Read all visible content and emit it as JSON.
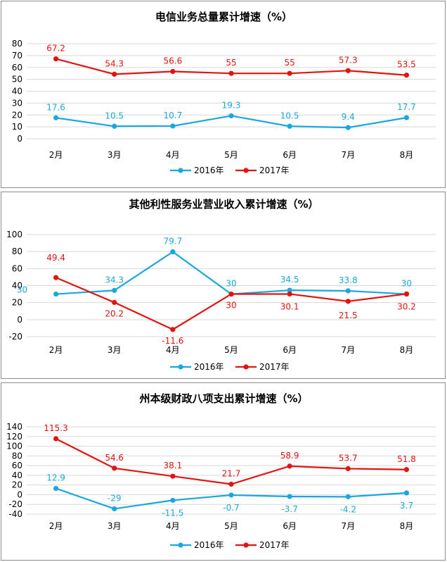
{
  "chart_data": [
    {
      "type": "line",
      "title": "电信业务总量累计增速（%）",
      "categories": [
        "2月",
        "3月",
        "4月",
        "5月",
        "6月",
        "7月",
        "8月"
      ],
      "ylim": [
        0,
        80
      ],
      "yticks": [
        0,
        10,
        20,
        30,
        40,
        50,
        60,
        70,
        80
      ],
      "grid": true,
      "legend": "bottom",
      "series": [
        {
          "name": "2016年",
          "color": "#1aa7e0",
          "values": [
            17.6,
            10.5,
            10.7,
            19.3,
            10.5,
            9.4,
            17.7
          ],
          "labels": [
            "17.6",
            "10.5",
            "10.7",
            "19.3",
            "10.5",
            "9.4",
            "17.7"
          ]
        },
        {
          "name": "2017年",
          "color": "#e3140d",
          "values": [
            67.2,
            54.3,
            56.6,
            55,
            55,
            57.3,
            53.5
          ],
          "labels": [
            "67.2",
            "54.3",
            "56.6",
            "55",
            "55",
            "57.3",
            "53.5"
          ]
        }
      ]
    },
    {
      "type": "line",
      "title": "其他利性服务业营业收入累计增速（%）",
      "categories": [
        "2月",
        "3月",
        "4月",
        "5月",
        "6月",
        "7月",
        "8月"
      ],
      "ylim": [
        -20,
        100
      ],
      "yticks": [
        -20,
        0,
        20,
        40,
        60,
        80,
        100
      ],
      "grid": true,
      "legend": "bottom",
      "series": [
        {
          "name": "2016年",
          "color": "#1aa7e0",
          "values": [
            30,
            34.3,
            79.7,
            30,
            34.5,
            33.8,
            30
          ],
          "labels": [
            "30",
            "34.3",
            "79.7",
            "30",
            "34.5",
            "33.8",
            "30"
          ]
        },
        {
          "name": "2017年",
          "color": "#e3140d",
          "values": [
            49.4,
            20.2,
            -11.6,
            30,
            30.1,
            21.5,
            30.2
          ],
          "labels": [
            "49.4",
            "20.2",
            "-11.6",
            "30",
            "30.1",
            "21.5",
            "30.2"
          ]
        }
      ]
    },
    {
      "type": "line",
      "title": "州本级财政八项支出累计增速（%）",
      "categories": [
        "2月",
        "3月",
        "4月",
        "5月",
        "6月",
        "7月",
        "8月"
      ],
      "ylim": [
        -40,
        140
      ],
      "yticks": [
        -40,
        -20,
        0,
        20,
        40,
        60,
        80,
        100,
        120,
        140
      ],
      "grid": true,
      "legend": "bottom",
      "series": [
        {
          "name": "2016年",
          "color": "#1aa7e0",
          "values": [
            12.9,
            -29,
            -11.5,
            -0.7,
            -3.7,
            -4.2,
            3.7
          ],
          "labels": [
            "12.9",
            "-29",
            "-11.5",
            "-0.7",
            "-3.7",
            "-4.2",
            "3.7"
          ]
        },
        {
          "name": "2017年",
          "color": "#e3140d",
          "values": [
            115.3,
            54.6,
            38.1,
            21.7,
            58.9,
            53.7,
            51.8
          ],
          "labels": [
            "115.3",
            "54.6",
            "38.1",
            "21.7",
            "58.9",
            "53.7",
            "51.8"
          ]
        }
      ]
    }
  ]
}
